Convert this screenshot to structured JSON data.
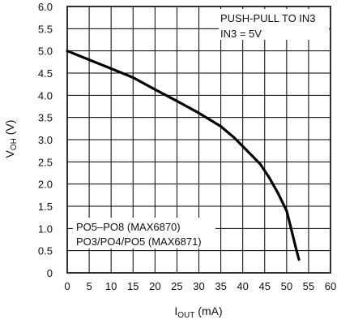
{
  "chart_data": {
    "type": "line",
    "xlabel_main": "I",
    "xlabel_sub": "OUT",
    "xlabel_unit": " (mA)",
    "ylabel_main": "V",
    "ylabel_sub": "OH",
    "ylabel_unit": " (V)",
    "xlim": [
      0,
      60
    ],
    "ylim": [
      0,
      6.0
    ],
    "xticks": [
      "0",
      "5",
      "10",
      "15",
      "20",
      "25",
      "30",
      "35",
      "40",
      "45",
      "50",
      "55",
      "60"
    ],
    "yticks": [
      "0",
      "0.5",
      "1.0",
      "1.5",
      "2.0",
      "2.5",
      "3.0",
      "3.5",
      "4.0",
      "4.5",
      "5.0",
      "5.5",
      "6.0"
    ],
    "grid": true,
    "annotations": {
      "condition_line1": "PUSH-PULL TO IN3",
      "condition_line2": "IN3 = 5V",
      "series_label_line1": "PO5–PO8 (MAX6870)",
      "series_label_line2": "PO3/PO4/PO5 (MAX6871)"
    },
    "series": [
      {
        "x": [
          0,
          5,
          10,
          15,
          20,
          25,
          30,
          35,
          38,
          40,
          42,
          44,
          46,
          48,
          50,
          51,
          52,
          52.8
        ],
        "y": [
          5.0,
          4.8,
          4.6,
          4.4,
          4.13,
          3.87,
          3.6,
          3.3,
          3.05,
          2.85,
          2.65,
          2.45,
          2.15,
          1.8,
          1.4,
          1.0,
          0.6,
          0.3
        ]
      }
    ]
  }
}
